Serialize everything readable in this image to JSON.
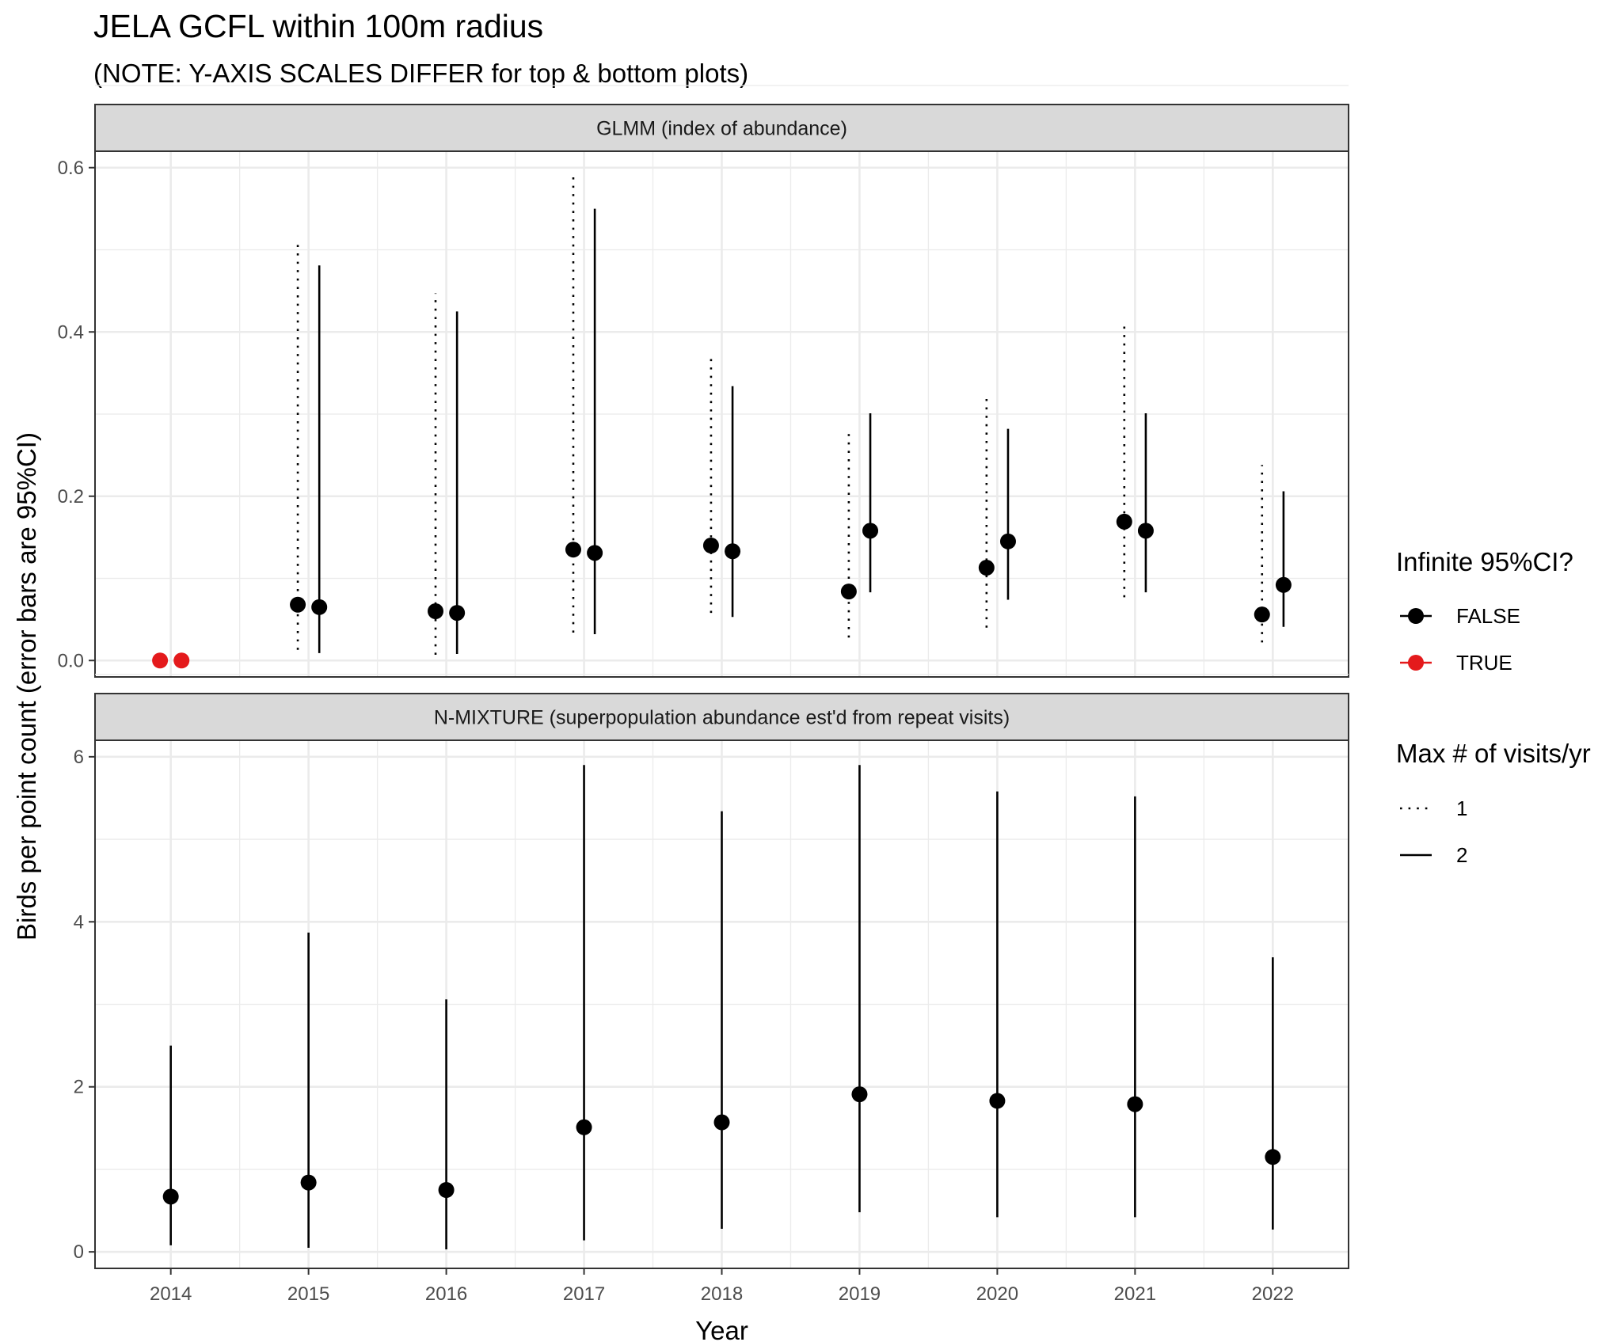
{
  "title": "JELA GCFL within 100m radius",
  "subtitle": "(NOTE: Y-AXIS SCALES DIFFER for top & bottom plots)",
  "xlabel": "Year",
  "ylabel": "Birds per point count (error bars are 95%CI)",
  "legend": {
    "infinite": {
      "title": "Infinite 95%CI?",
      "items": [
        {
          "label": "FALSE",
          "color": "#000000"
        },
        {
          "label": "TRUE",
          "color": "#e41a1c"
        }
      ]
    },
    "visits": {
      "title": "Max # of visits/yr",
      "items": [
        {
          "label": "1",
          "linetype": "dotted"
        },
        {
          "label": "2",
          "linetype": "solid"
        }
      ]
    }
  },
  "chart_data": [
    {
      "type": "scatter",
      "panel": "GLMM (index of abundance)",
      "x_ticks": [
        "2014",
        "2015",
        "2016",
        "2017",
        "2018",
        "2019",
        "2020",
        "2021",
        "2022"
      ],
      "y_ticks": [
        "0.0",
        "0.2",
        "0.4",
        "0.6"
      ],
      "ylim": [
        -0.02,
        0.62
      ],
      "grid": true,
      "points": [
        {
          "year": 2014,
          "visits": 1,
          "y": 0.0,
          "lo": null,
          "hi": null,
          "infinite": true
        },
        {
          "year": 2014,
          "visits": 2,
          "y": 0.0,
          "lo": null,
          "hi": null,
          "infinite": true
        },
        {
          "year": 2015,
          "visits": 1,
          "y": 0.068,
          "lo": 0.013,
          "hi": 0.513,
          "infinite": false
        },
        {
          "year": 2015,
          "visits": 2,
          "y": 0.065,
          "lo": 0.009,
          "hi": 0.481,
          "infinite": false
        },
        {
          "year": 2016,
          "visits": 1,
          "y": 0.06,
          "lo": 0.007,
          "hi": 0.447,
          "infinite": false
        },
        {
          "year": 2016,
          "visits": 2,
          "y": 0.058,
          "lo": 0.008,
          "hi": 0.425,
          "infinite": false
        },
        {
          "year": 2017,
          "visits": 1,
          "y": 0.135,
          "lo": 0.034,
          "hi": 0.592,
          "infinite": false
        },
        {
          "year": 2017,
          "visits": 2,
          "y": 0.131,
          "lo": 0.032,
          "hi": 0.55,
          "infinite": false
        },
        {
          "year": 2018,
          "visits": 1,
          "y": 0.14,
          "lo": 0.058,
          "hi": 0.368,
          "infinite": false
        },
        {
          "year": 2018,
          "visits": 2,
          "y": 0.133,
          "lo": 0.053,
          "hi": 0.334,
          "infinite": false
        },
        {
          "year": 2019,
          "visits": 1,
          "y": 0.084,
          "lo": 0.028,
          "hi": 0.281,
          "infinite": false
        },
        {
          "year": 2019,
          "visits": 2,
          "y": 0.158,
          "lo": 0.083,
          "hi": 0.301,
          "infinite": false
        },
        {
          "year": 2020,
          "visits": 1,
          "y": 0.113,
          "lo": 0.04,
          "hi": 0.323,
          "infinite": false
        },
        {
          "year": 2020,
          "visits": 2,
          "y": 0.145,
          "lo": 0.074,
          "hi": 0.282,
          "infinite": false
        },
        {
          "year": 2021,
          "visits": 1,
          "y": 0.169,
          "lo": 0.077,
          "hi": 0.411,
          "infinite": false
        },
        {
          "year": 2021,
          "visits": 2,
          "y": 0.158,
          "lo": 0.083,
          "hi": 0.301,
          "infinite": false
        },
        {
          "year": 2022,
          "visits": 1,
          "y": 0.056,
          "lo": 0.022,
          "hi": 0.238,
          "infinite": false
        },
        {
          "year": 2022,
          "visits": 2,
          "y": 0.092,
          "lo": 0.041,
          "hi": 0.206,
          "infinite": false
        }
      ]
    },
    {
      "type": "scatter",
      "panel": "N-MIXTURE (superpopulation abundance est'd from repeat visits)",
      "x_ticks": [
        "2014",
        "2015",
        "2016",
        "2017",
        "2018",
        "2019",
        "2020",
        "2021",
        "2022"
      ],
      "y_ticks": [
        "0",
        "2",
        "4",
        "6"
      ],
      "ylim": [
        -0.2,
        6.2
      ],
      "grid": true,
      "points": [
        {
          "year": 2014,
          "visits": 2,
          "y": 0.67,
          "lo": 0.08,
          "hi": 2.5,
          "infinite": false
        },
        {
          "year": 2015,
          "visits": 2,
          "y": 0.84,
          "lo": 0.05,
          "hi": 3.87,
          "infinite": false
        },
        {
          "year": 2016,
          "visits": 2,
          "y": 0.75,
          "lo": 0.03,
          "hi": 3.06,
          "infinite": false
        },
        {
          "year": 2017,
          "visits": 2,
          "y": 1.51,
          "lo": 0.14,
          "hi": 5.9,
          "infinite": false
        },
        {
          "year": 2018,
          "visits": 2,
          "y": 1.57,
          "lo": 0.28,
          "hi": 5.34,
          "infinite": false
        },
        {
          "year": 2019,
          "visits": 2,
          "y": 1.91,
          "lo": 0.48,
          "hi": 5.9,
          "infinite": false
        },
        {
          "year": 2020,
          "visits": 2,
          "y": 1.83,
          "lo": 0.42,
          "hi": 5.58,
          "infinite": false
        },
        {
          "year": 2021,
          "visits": 2,
          "y": 1.79,
          "lo": 0.42,
          "hi": 5.52,
          "infinite": false
        },
        {
          "year": 2022,
          "visits": 2,
          "y": 1.15,
          "lo": 0.27,
          "hi": 3.57,
          "infinite": false
        }
      ]
    }
  ]
}
